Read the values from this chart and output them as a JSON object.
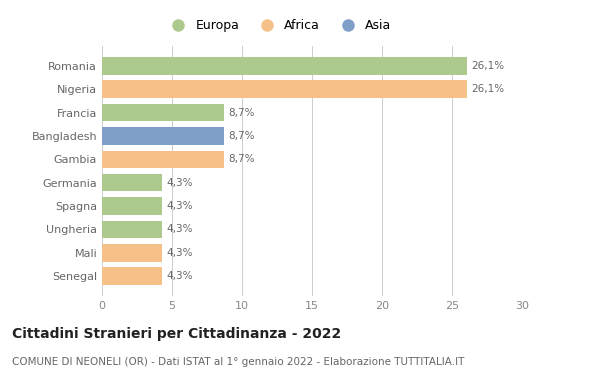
{
  "categories": [
    "Romania",
    "Nigeria",
    "Francia",
    "Bangladesh",
    "Gambia",
    "Germania",
    "Spagna",
    "Ungheria",
    "Mali",
    "Senegal"
  ],
  "values": [
    26.1,
    26.1,
    8.7,
    8.7,
    8.7,
    4.3,
    4.3,
    4.3,
    4.3,
    4.3
  ],
  "labels": [
    "26,1%",
    "26,1%",
    "8,7%",
    "8,7%",
    "8,7%",
    "4,3%",
    "4,3%",
    "4,3%",
    "4,3%",
    "4,3%"
  ],
  "bar_colors": [
    "#aec98d",
    "#f5c189",
    "#aec98d",
    "#7f9fc9",
    "#f5c189",
    "#aec98d",
    "#aec98d",
    "#aec98d",
    "#f5c189",
    "#f5c189"
  ],
  "legend_labels": [
    "Europa",
    "Africa",
    "Asia"
  ],
  "legend_colors": [
    "#aec98d",
    "#f5c189",
    "#7f9fc9"
  ],
  "title": "Cittadini Stranieri per Cittadinanza - 2022",
  "subtitle": "COMUNE DI NEONELI (OR) - Dati ISTAT al 1° gennaio 2022 - Elaborazione TUTTITALIA.IT",
  "xlim": [
    0,
    30
  ],
  "xticks": [
    0,
    5,
    10,
    15,
    20,
    25,
    30
  ],
  "background_color": "#ffffff",
  "grid_color": "#cccccc",
  "title_fontsize": 10,
  "subtitle_fontsize": 7.5,
  "label_fontsize": 7.5,
  "tick_fontsize": 8,
  "ylabel_fontsize": 8
}
